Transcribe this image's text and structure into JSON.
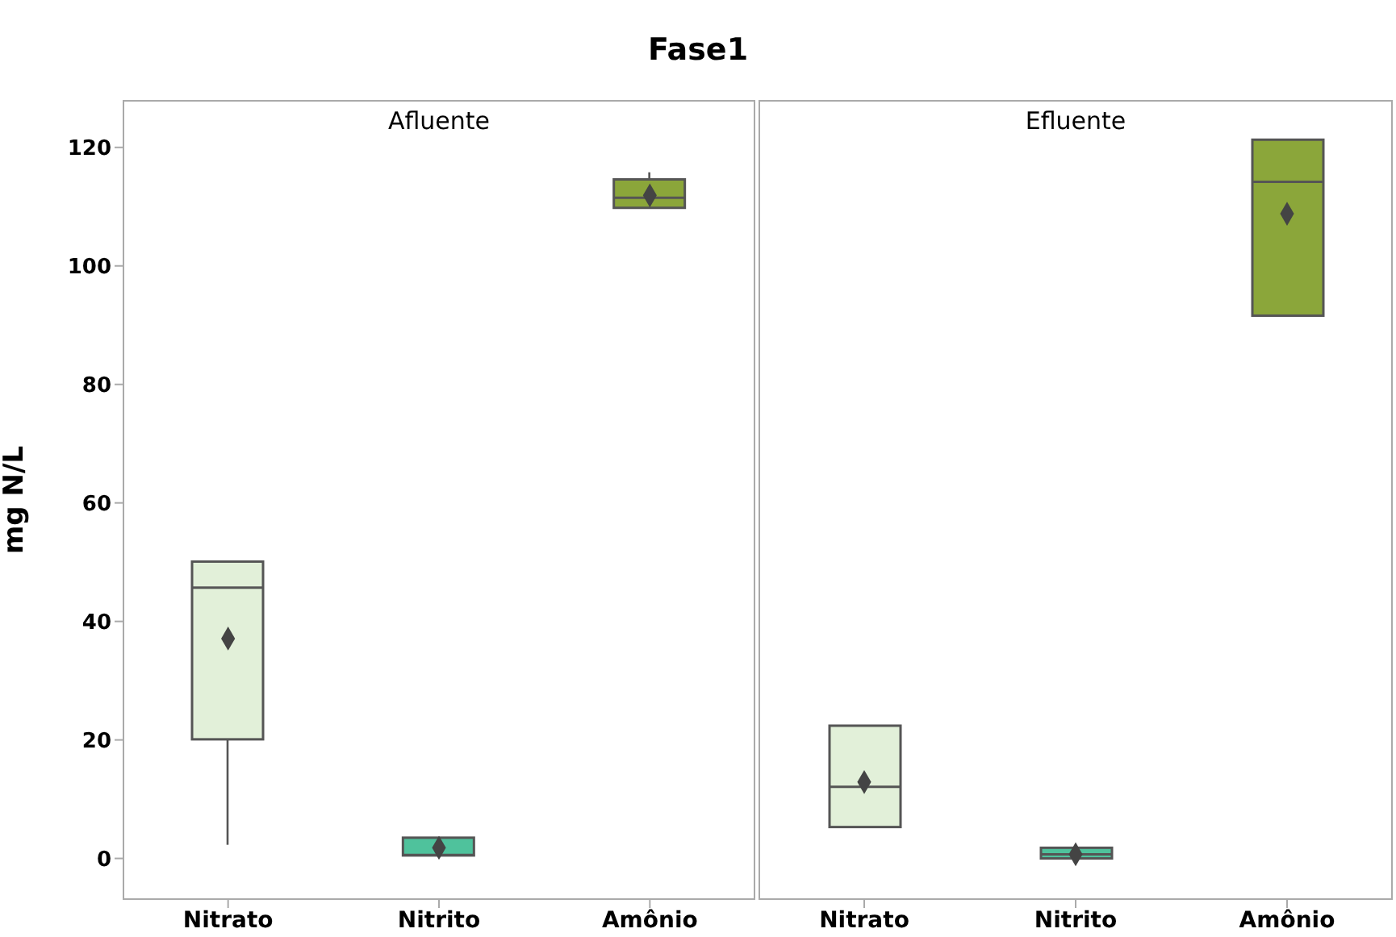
{
  "chart_data": [
    {
      "type": "box",
      "title": "Fase1",
      "subtitle": "Afluente",
      "ylabel": "mg N/L",
      "categories": [
        "Nitrato",
        "Nitrito",
        "Amônio"
      ],
      "colors": [
        "#e2f0d9",
        "#4fc29c",
        "#8ba63a"
      ],
      "ylim": [
        -7,
        128
      ],
      "yticks": [
        0,
        20,
        40,
        60,
        80,
        100,
        120
      ],
      "boxes": [
        {
          "low": 2.3,
          "q1": 20.1,
          "median": 45.7,
          "q3": 50.1,
          "high": 50.1,
          "mean": 37.1
        },
        {
          "low": 0.5,
          "q1": 0.5,
          "median": 0.6,
          "q3": 3.5,
          "high": 3.5,
          "mean": 1.8
        },
        {
          "low": 109.8,
          "q1": 109.8,
          "median": 111.5,
          "q3": 114.6,
          "high": 115.8,
          "mean": 111.9
        }
      ]
    },
    {
      "type": "box",
      "subtitle": "Efluente",
      "categories": [
        "Nitrato",
        "Nitrito",
        "Amônio"
      ],
      "colors": [
        "#e2f0d9",
        "#4fc29c",
        "#8ba63a"
      ],
      "ylim": [
        -7,
        128
      ],
      "yticks": [
        0,
        20,
        40,
        60,
        80,
        100,
        120
      ],
      "tick_labels": "x",
      "boxes": [
        {
          "low": 5.3,
          "q1": 5.3,
          "median": 12.1,
          "q3": 22.4,
          "high": 22.4,
          "mean": 12.9
        },
        {
          "low": 0,
          "q1": 0,
          "median": 0.7,
          "q3": 1.8,
          "high": 1.8,
          "mean": 0.7
        },
        {
          "low": 91.6,
          "q1": 91.6,
          "median": 114.2,
          "q3": 121.3,
          "high": 121.3,
          "mean": 108.8
        }
      ]
    }
  ]
}
